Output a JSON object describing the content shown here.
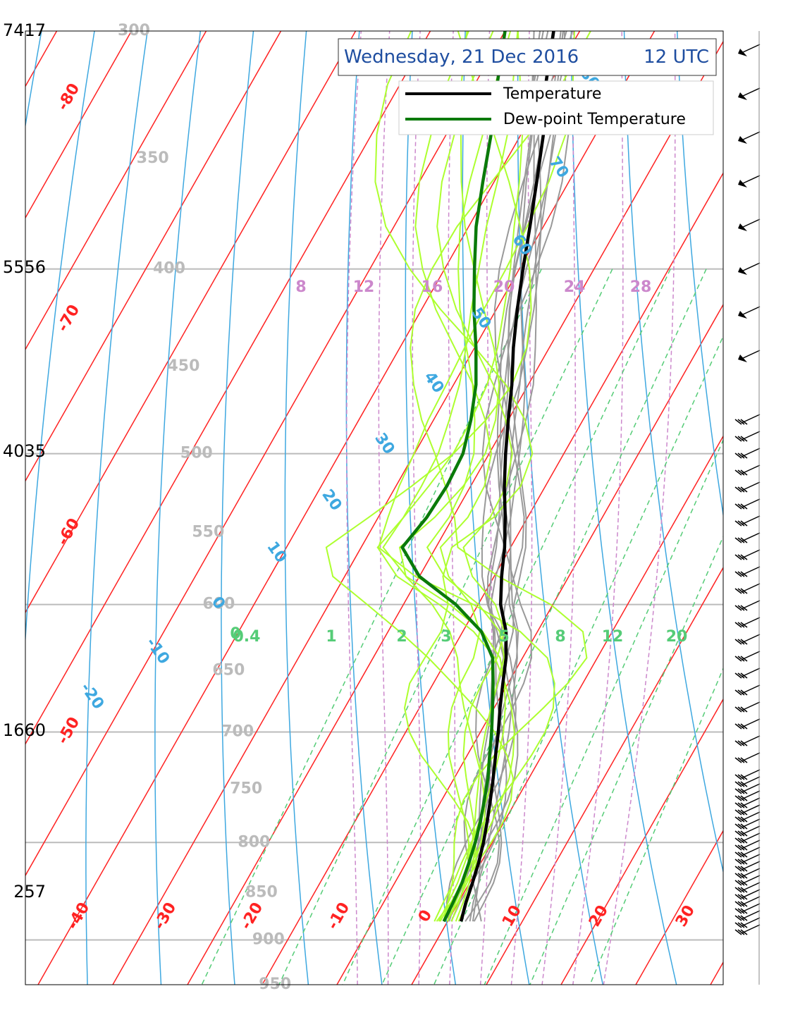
{
  "chart_data": {
    "type": "line",
    "title": "Wednesday, 21 Dec 2016",
    "title_time": "12 UTC",
    "legend": {
      "placement": "top-right",
      "entries": [
        {
          "label": "Temperature",
          "color": "#000000"
        },
        {
          "label": "Dew-point Temperature",
          "color": "#0a7a0a"
        }
      ]
    },
    "height_labels": [
      "7417",
      "5556",
      "4035",
      "1660",
      "257"
    ],
    "pressure_labels": [
      "300",
      "350",
      "400",
      "450",
      "500",
      "550",
      "600",
      "650",
      "700",
      "750",
      "800",
      "850",
      "900",
      "950"
    ],
    "isotherm_labels": [
      "-80",
      "-70",
      "-60",
      "-50",
      "-40",
      "-30",
      "-20",
      "-10",
      "0",
      "10",
      "20",
      "30"
    ],
    "dry_adiabat_labels": [
      "-20",
      "-10",
      "0",
      "10",
      "20",
      "30",
      "40",
      "50",
      "60",
      "70",
      "80"
    ],
    "moist_adiabat_labels": [
      "8",
      "12",
      "16",
      "20",
      "24",
      "28"
    ],
    "mixing_ratio_labels": [
      "0.4",
      "1",
      "2",
      "3",
      "5",
      "8",
      "12",
      "20"
    ],
    "series": [
      {
        "name": "Temperature",
        "color": "#000000",
        "points": [
          [
            300,
            -53.5
          ],
          [
            320,
            -50.5
          ],
          [
            340,
            -47
          ],
          [
            360,
            -44.3
          ],
          [
            380,
            -41.8
          ],
          [
            400,
            -39.5
          ],
          [
            420,
            -37.2
          ],
          [
            440,
            -34.8
          ],
          [
            460,
            -32.2
          ],
          [
            480,
            -30
          ],
          [
            500,
            -27.8
          ],
          [
            520,
            -25.5
          ],
          [
            540,
            -23
          ],
          [
            560,
            -20.8
          ],
          [
            580,
            -19
          ],
          [
            600,
            -17
          ],
          [
            620,
            -14.2
          ],
          [
            640,
            -12.2
          ],
          [
            660,
            -10.7
          ],
          [
            680,
            -9.2
          ],
          [
            700,
            -7.6
          ],
          [
            720,
            -6.2
          ],
          [
            740,
            -4.8
          ],
          [
            760,
            -3.5
          ],
          [
            780,
            -2.3
          ],
          [
            800,
            -1.2
          ],
          [
            820,
            -0.3
          ],
          [
            840,
            0.4
          ],
          [
            860,
            1
          ],
          [
            880,
            1.8
          ]
        ]
      },
      {
        "name": "Dew-point Temperature",
        "color": "#0a7a0a",
        "points": [
          [
            300,
            -60
          ],
          [
            320,
            -57
          ],
          [
            340,
            -54
          ],
          [
            360,
            -51.5
          ],
          [
            380,
            -49
          ],
          [
            400,
            -46
          ],
          [
            420,
            -43
          ],
          [
            440,
            -39.8
          ],
          [
            460,
            -37
          ],
          [
            480,
            -35
          ],
          [
            500,
            -33.5
          ],
          [
            520,
            -33.2
          ],
          [
            540,
            -33.5
          ],
          [
            560,
            -34.5
          ],
          [
            580,
            -30
          ],
          [
            600,
            -23
          ],
          [
            620,
            -17.5
          ],
          [
            640,
            -14
          ],
          [
            660,
            -12
          ],
          [
            680,
            -10.2
          ],
          [
            700,
            -8.5
          ],
          [
            720,
            -7
          ],
          [
            740,
            -5.5
          ],
          [
            760,
            -4.3
          ],
          [
            780,
            -3.2
          ],
          [
            800,
            -2.3
          ],
          [
            820,
            -1.6
          ],
          [
            840,
            -1
          ],
          [
            860,
            -0.7
          ],
          [
            880,
            -0.5
          ]
        ]
      }
    ],
    "ensemble_temperature_color": "#999999",
    "ensemble_dewpoint_color": "#adff2f",
    "isotherm_color": "#ff2222",
    "dry_adiabat_color": "#3ea8e0",
    "moist_adiabat_color": "#cc88cc",
    "mixing_ratio_color": "#55cc77",
    "isobar_color": "#bbbbbb",
    "ylim": [
      300,
      950
    ],
    "xlim": [
      -50,
      40
    ],
    "grid": true,
    "wind_barbs": true
  }
}
